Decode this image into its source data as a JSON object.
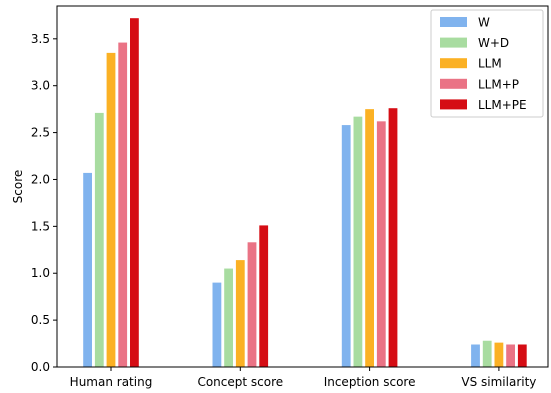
{
  "chart_data": {
    "type": "bar",
    "title": "",
    "xlabel": "",
    "ylabel": "Score",
    "ylim": [
      0,
      3.85
    ],
    "yticks": [
      0.0,
      0.5,
      1.0,
      1.5,
      2.0,
      2.5,
      3.0,
      3.5
    ],
    "ytick_labels": [
      "0.0",
      "0.5",
      "1.0",
      "1.5",
      "2.0",
      "2.5",
      "3.0",
      "3.5"
    ],
    "categories": [
      "Human rating",
      "Concept score",
      "Inception score",
      "VS similarity"
    ],
    "series": [
      {
        "name": "W",
        "color": "#80b3ee",
        "values": [
          2.07,
          0.9,
          2.58,
          0.24
        ]
      },
      {
        "name": "W+D",
        "color": "#a8dca0",
        "values": [
          2.71,
          1.05,
          2.67,
          0.28
        ]
      },
      {
        "name": "LLM",
        "color": "#fbb124",
        "values": [
          3.35,
          1.14,
          2.75,
          0.26
        ]
      },
      {
        "name": "LLM+P",
        "color": "#ea7385",
        "values": [
          3.46,
          1.33,
          2.62,
          0.24
        ]
      },
      {
        "name": "LLM+PE",
        "color": "#d50d14",
        "values": [
          3.72,
          1.51,
          2.76,
          0.24
        ]
      }
    ],
    "grid": false,
    "legend_position": "top-right"
  }
}
